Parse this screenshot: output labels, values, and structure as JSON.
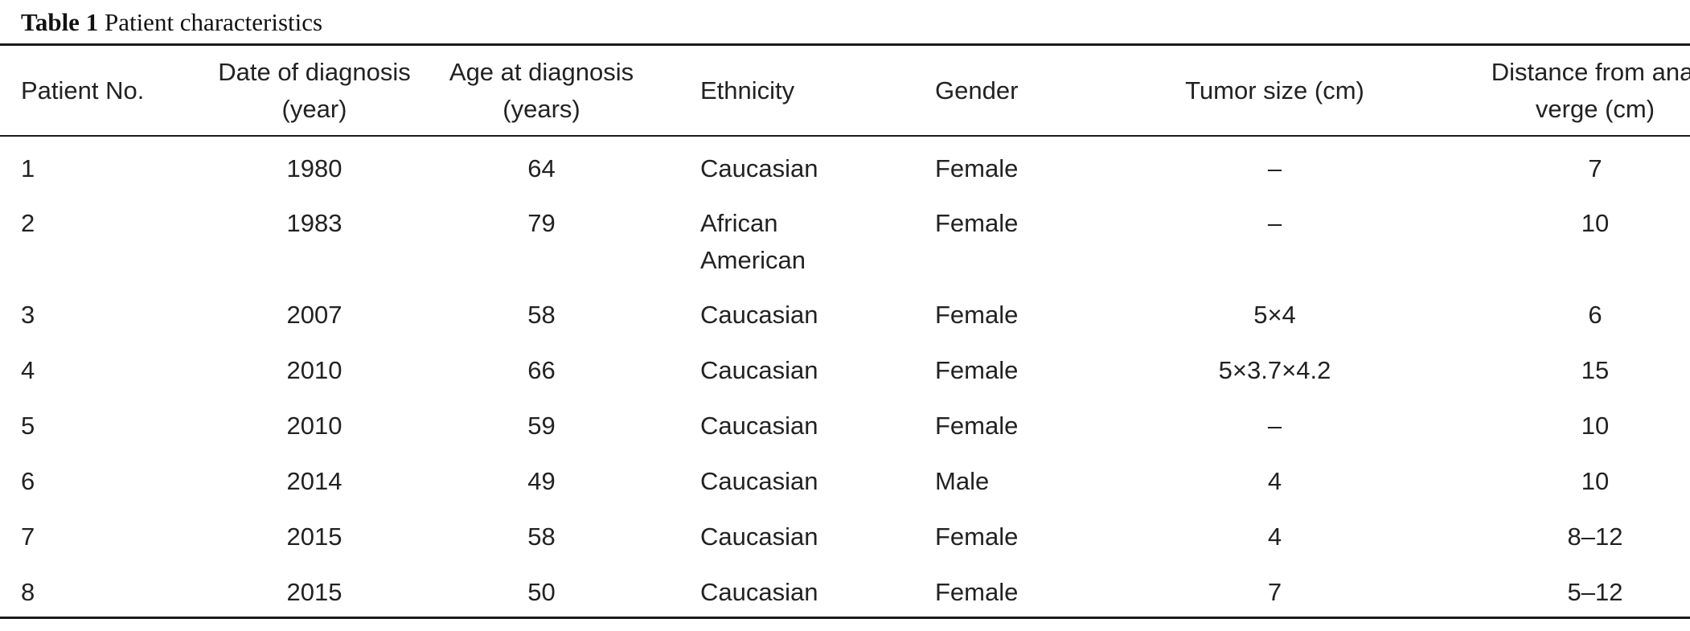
{
  "caption": {
    "label": "Table 1",
    "title": "Patient characteristics"
  },
  "table": {
    "headers": [
      [
        "Patient No."
      ],
      [
        "Date of diagnosis",
        "(year)"
      ],
      [
        "Age at diagnosis",
        "(years)"
      ],
      [
        "Ethnicity"
      ],
      [
        "Gender"
      ],
      [
        "Tumor size (cm)"
      ],
      [
        "Distance from anal",
        "verge (cm)"
      ]
    ],
    "rows": [
      {
        "patient": "1",
        "year": "1980",
        "age": "64",
        "ethnicity": [
          "Caucasian"
        ],
        "gender": "Female",
        "tumor_size": "–",
        "distance": "7"
      },
      {
        "patient": "2",
        "year": "1983",
        "age": "79",
        "ethnicity": [
          "African",
          "American"
        ],
        "gender": "Female",
        "tumor_size": "–",
        "distance": "10"
      },
      {
        "patient": "3",
        "year": "2007",
        "age": "58",
        "ethnicity": [
          "Caucasian"
        ],
        "gender": "Female",
        "tumor_size": "5×4",
        "distance": "6"
      },
      {
        "patient": "4",
        "year": "2010",
        "age": "66",
        "ethnicity": [
          "Caucasian"
        ],
        "gender": "Female",
        "tumor_size": "5×3.7×4.2",
        "distance": "15"
      },
      {
        "patient": "5",
        "year": "2010",
        "age": "59",
        "ethnicity": [
          "Caucasian"
        ],
        "gender": "Female",
        "tumor_size": "–",
        "distance": "10"
      },
      {
        "patient": "6",
        "year": "2014",
        "age": "49",
        "ethnicity": [
          "Caucasian"
        ],
        "gender": "Male",
        "tumor_size": "4",
        "distance": "10"
      },
      {
        "patient": "7",
        "year": "2015",
        "age": "58",
        "ethnicity": [
          "Caucasian"
        ],
        "gender": "Female",
        "tumor_size": "4",
        "distance": "8–12"
      },
      {
        "patient": "8",
        "year": "2015",
        "age": "50",
        "ethnicity": [
          "Caucasian"
        ],
        "gender": "Female",
        "tumor_size": "7",
        "distance": "5–12"
      }
    ]
  }
}
